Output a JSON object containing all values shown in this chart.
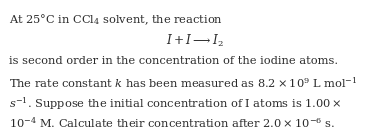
{
  "background_color": "#ffffff",
  "text_color": "#2b2b2b",
  "figsize": [
    3.9,
    1.33
  ],
  "dpi": 100,
  "font_size": 8.2,
  "line1": "At 25°C in $\\mathrm{CCl_4}$ solvent, the reaction",
  "line2": "$I + I \\longrightarrow I_2$",
  "line3": "is second order in the concentration of the iodine atoms.",
  "line4": "The rate constant $k$ has been measured as $8.2 \\times 10^{9}$ L mol$^{-1}$",
  "line5": "$s^{-1}$. Suppose the initial concentration of I atoms is $1.00 \\times$",
  "line6": "$10^{-4}$ M. Calculate their concentration after $2.0 \\times 10^{-6}$ s."
}
